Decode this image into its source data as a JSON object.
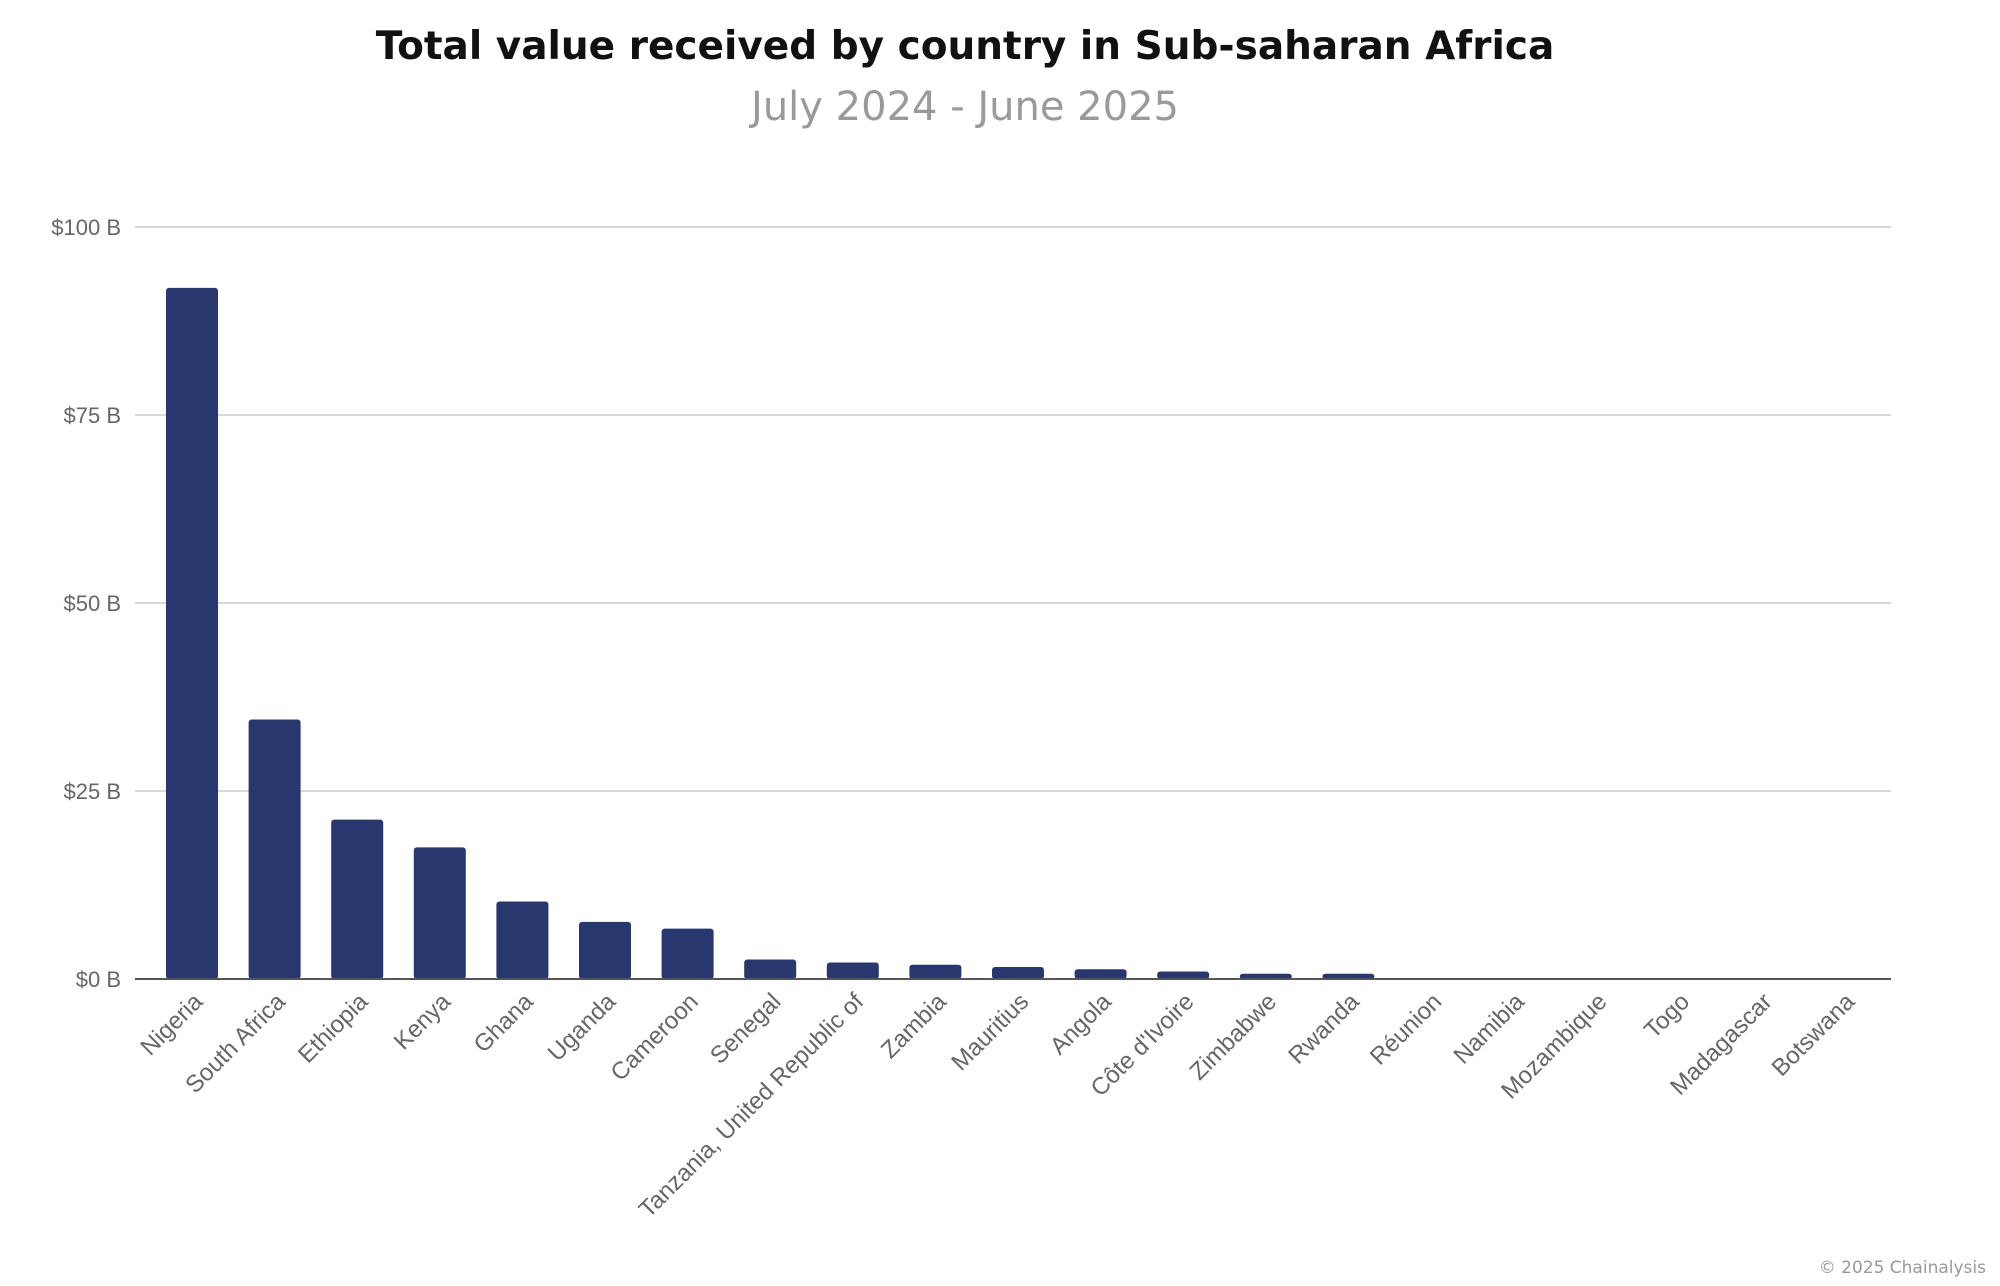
{
  "chart_data": {
    "type": "bar",
    "title": "Total value received by country in Sub-saharan Africa",
    "subtitle": "July 2024 - June 2025",
    "xlabel": "",
    "ylabel": "",
    "ylim": [
      0,
      100
    ],
    "yticks": [
      {
        "value": 0,
        "label": "$0 B"
      },
      {
        "value": 25,
        "label": "$25 B"
      },
      {
        "value": 50,
        "label": "$50 B"
      },
      {
        "value": 75,
        "label": "$75 B"
      },
      {
        "value": 100,
        "label": "$100 B"
      }
    ],
    "grid": true,
    "unit": "billion USD",
    "bar_color": "#28386f",
    "categories": [
      "Nigeria",
      "South Africa",
      "Ethiopia",
      "Kenya",
      "Ghana",
      "Uganda",
      "Cameroon",
      "Senegal",
      "Tanzania, United Republic of",
      "Zambia",
      "Mauritius",
      "Angola",
      "Côte d'Ivoire",
      "Zimbabwe",
      "Rwanda",
      "Réunion",
      "Namibia",
      "Mozambique",
      "Togo",
      "Madagascar",
      "Botswana"
    ],
    "values": [
      91.9,
      34.5,
      21.2,
      17.5,
      10.3,
      7.6,
      6.7,
      2.6,
      2.2,
      1.9,
      1.6,
      1.3,
      1.0,
      0.7,
      0.7,
      0.1,
      0.1,
      0.0,
      0.0,
      0.0,
      0.0
    ]
  },
  "credit": "© 2025 Chainalysis"
}
